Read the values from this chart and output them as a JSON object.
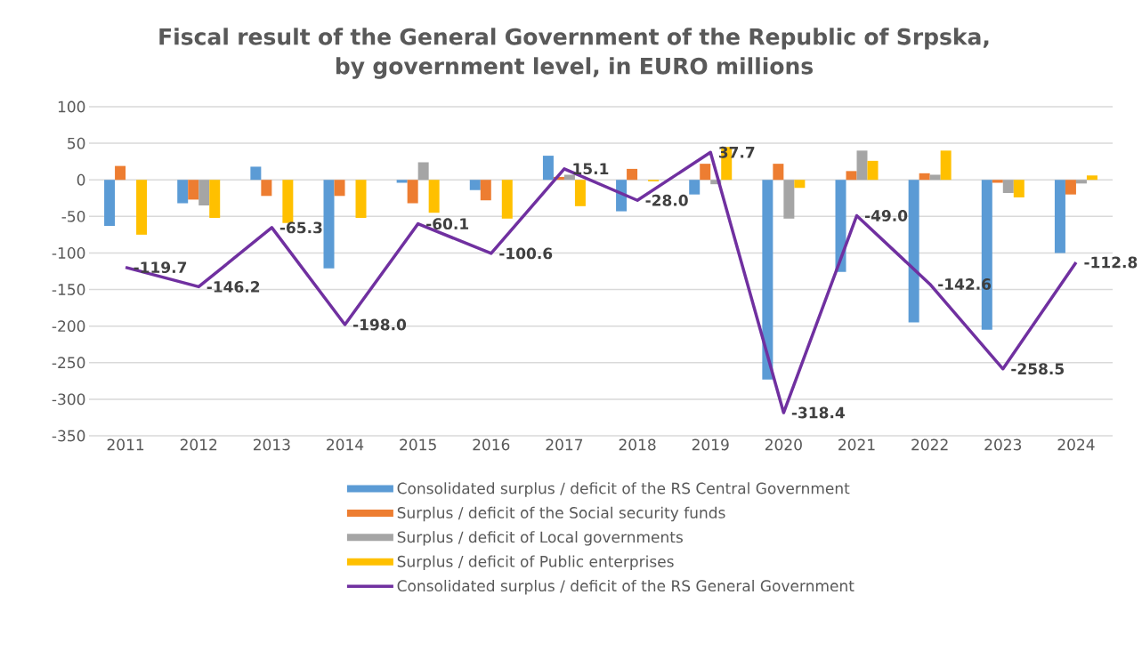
{
  "chart_data": {
    "type": "bar",
    "title": "Fiscal result of the General Government of the Republic of Srpska,\nby government level, in EURO millions",
    "categories": [
      "2011",
      "2012",
      "2013",
      "2014",
      "2015",
      "2016",
      "2017",
      "2018",
      "2019",
      "2020",
      "2021",
      "2022",
      "2023",
      "2024"
    ],
    "series": [
      {
        "name": "Consolidated surplus / deficit of the RS Central Government",
        "color": "#5b9bd5",
        "values": [
          -63,
          -32,
          18,
          -121,
          -4,
          -14,
          33,
          -43,
          -20,
          -273,
          -126,
          -195,
          -205,
          -100
        ]
      },
      {
        "name": "Surplus / deficit of the Social security funds",
        "color": "#ed7d31",
        "values": [
          19,
          -27,
          -22,
          -22,
          -32,
          -28,
          4,
          15,
          22,
          22,
          12,
          9,
          -4,
          -20
        ]
      },
      {
        "name": "Surplus / deficit of Local governments",
        "color": "#a5a5a5",
        "values": [
          null,
          -35,
          0,
          null,
          24,
          0,
          7,
          0,
          -6,
          -53,
          40,
          7,
          -18,
          -5
        ]
      },
      {
        "name": "Surplus / deficit of Public enterprises",
        "color": "#ffc000",
        "values": [
          -75,
          -52,
          -59,
          -52,
          -45,
          -53,
          -36,
          -2,
          45,
          -11,
          26,
          40,
          -24,
          6
        ]
      },
      {
        "name": "Consolidated surplus / deficit of the RS General Government",
        "color": "#7030a0",
        "type": "line",
        "values": [
          -119.7,
          -146.2,
          -65.3,
          -198.0,
          -60.1,
          -100.6,
          15.1,
          -28.0,
          37.7,
          -318.4,
          -49.0,
          -142.6,
          -258.5,
          -112.8
        ],
        "value_labels": [
          "-119.7",
          "-146.2",
          "-65.3",
          "-198.0",
          "-60.1",
          "-100.6",
          "15.1",
          "-28.0",
          "37.7",
          "-318.4",
          "-49.0",
          "-142.6",
          "-258.5",
          "-112.8"
        ]
      }
    ],
    "ylim": [
      -350,
      100
    ],
    "yticks": [
      -350,
      -300,
      -250,
      -200,
      -150,
      -100,
      -50,
      0,
      50,
      100
    ],
    "grid": "y",
    "legend": "bottom"
  }
}
